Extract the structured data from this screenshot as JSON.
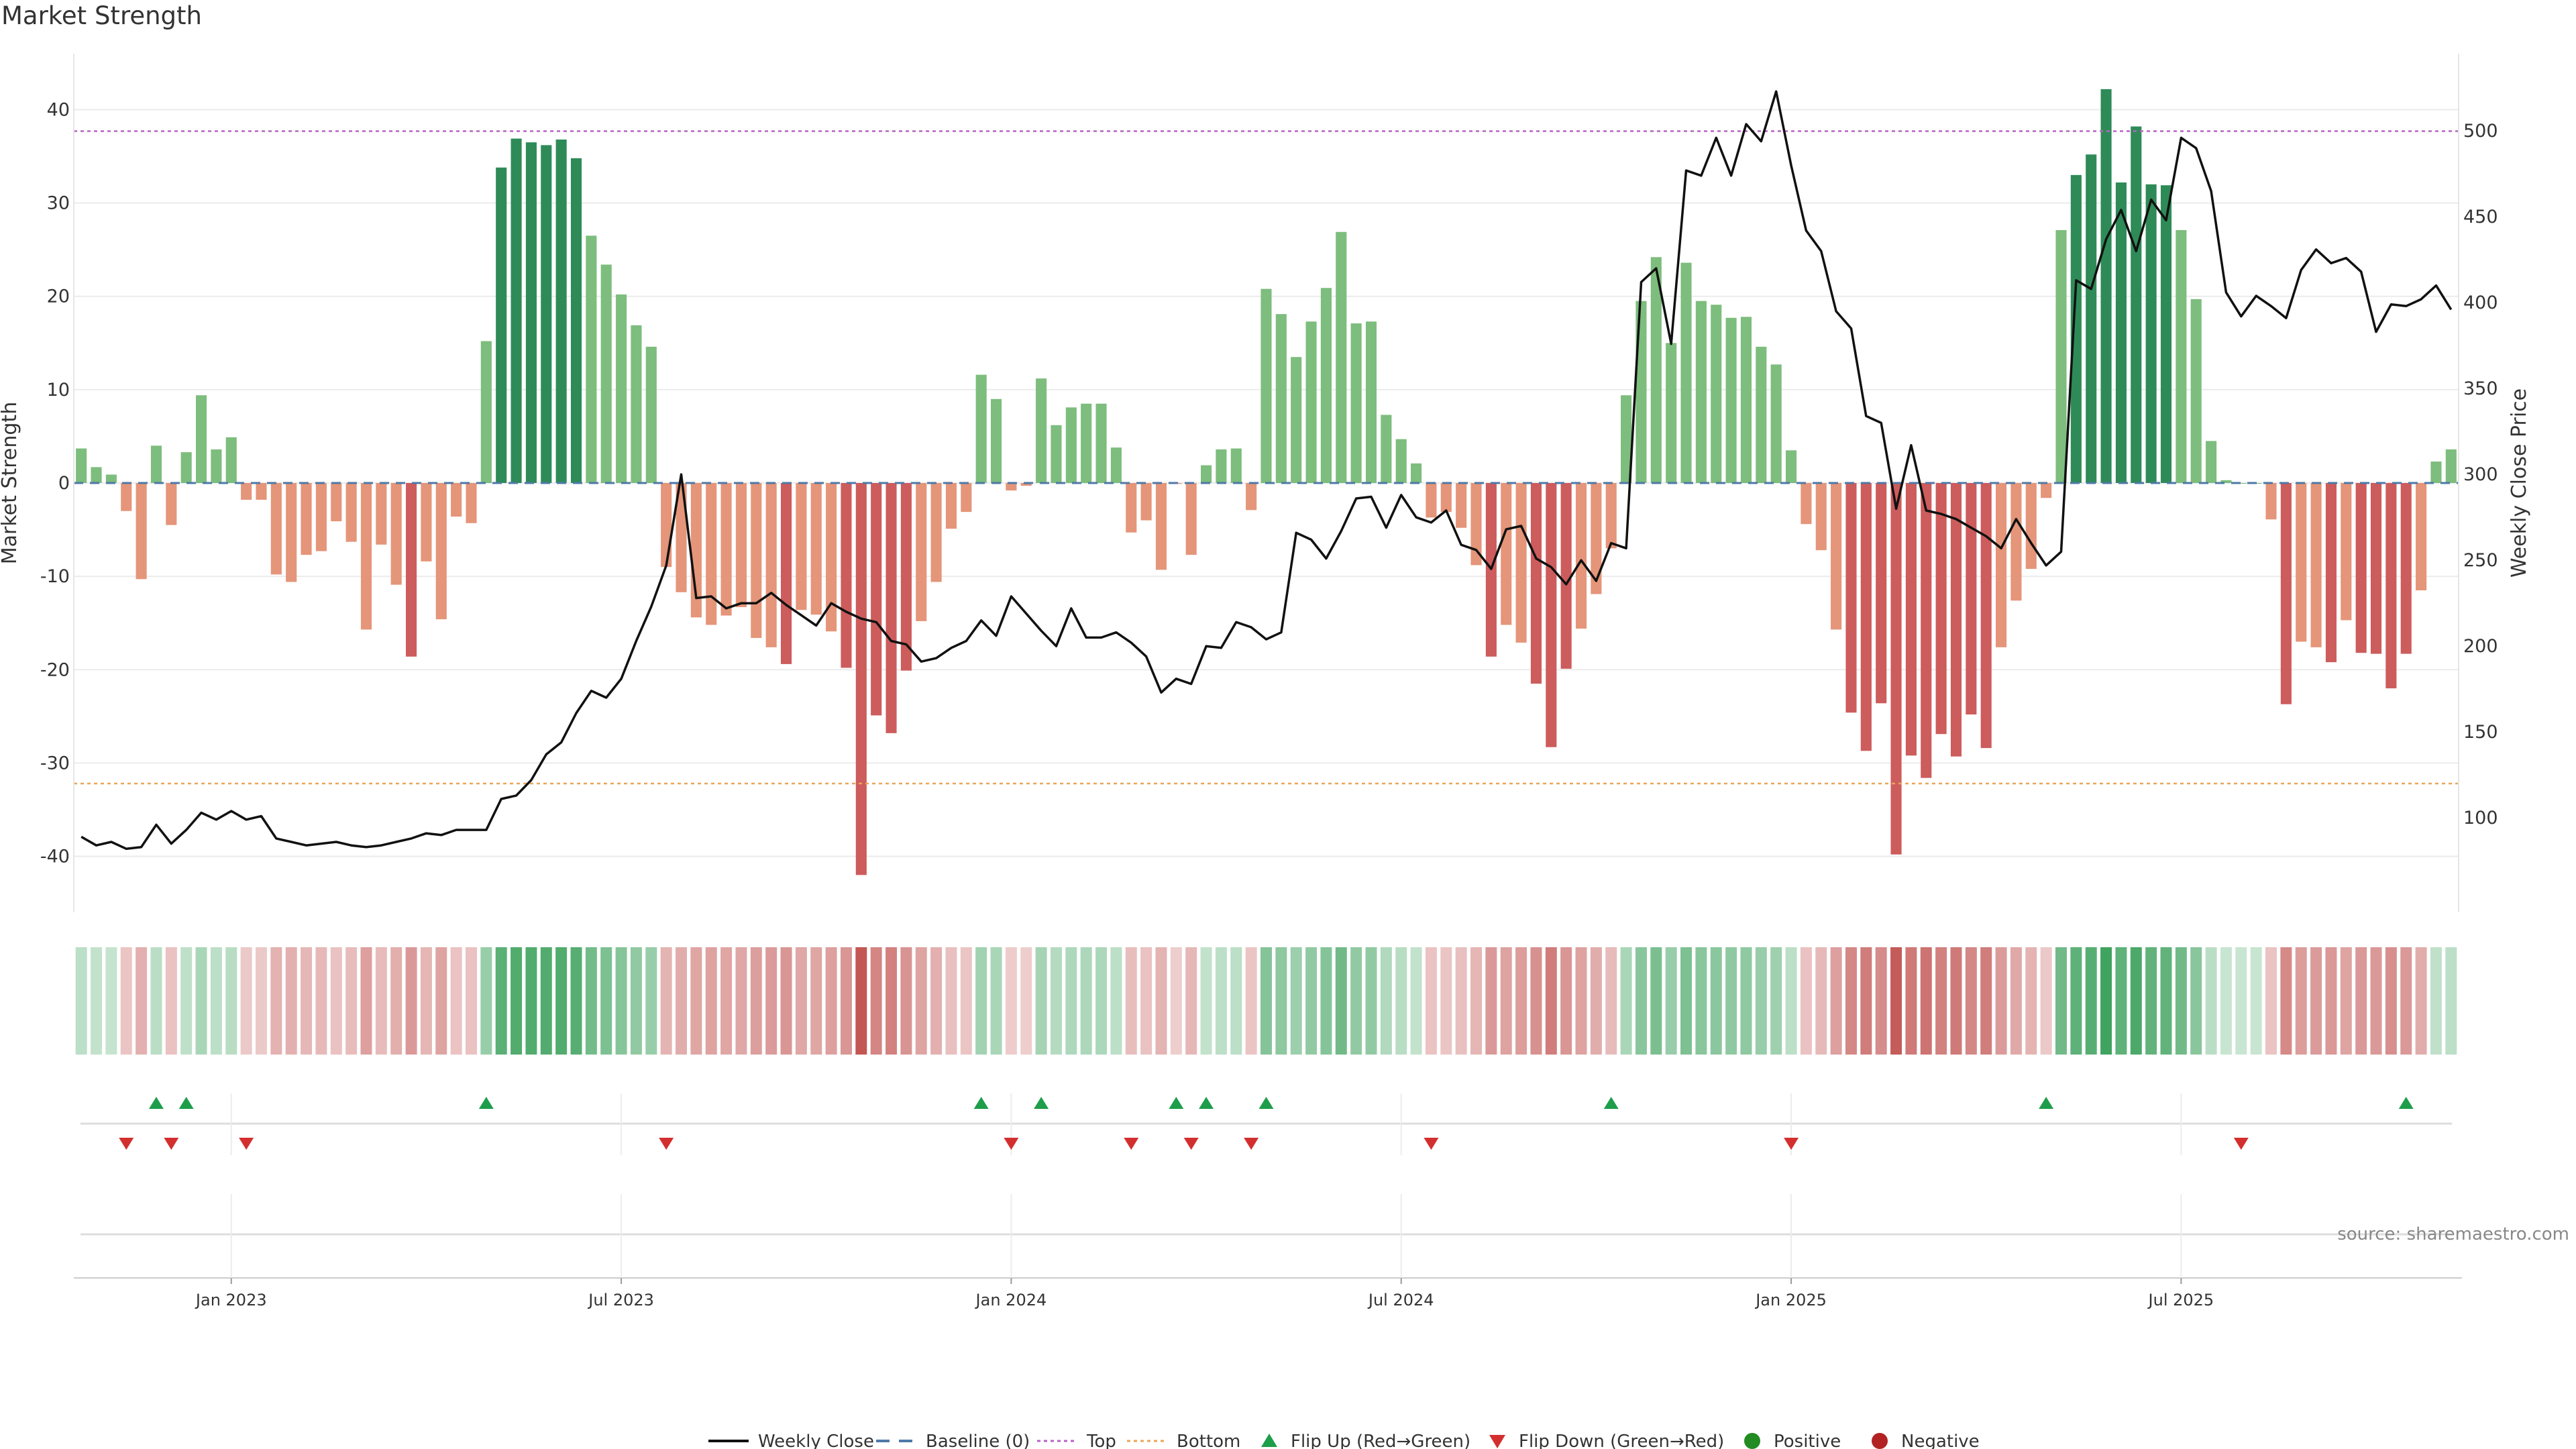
{
  "title": "Market Strength",
  "chart_data": {
    "type": "bar",
    "title": "Market Strength",
    "left_axis": {
      "label": "Market Strength",
      "range": [
        -46,
        46
      ],
      "ticks": [
        40,
        30,
        20,
        10,
        0,
        -10,
        -20,
        -30,
        -40
      ]
    },
    "right_axis": {
      "label": "Weekly Close Price",
      "range": [
        45,
        545
      ],
      "ticks": [
        500,
        450,
        400,
        350,
        300,
        250,
        200,
        150,
        100
      ]
    },
    "top_level": 37.7,
    "bottom_level": -32.2,
    "date_ticks": [
      {
        "label": "Jan 2023",
        "week": 10
      },
      {
        "label": "Jul 2023",
        "week": 36
      },
      {
        "label": "Jan 2024",
        "week": 62
      },
      {
        "label": "Jul 2024",
        "week": 88
      },
      {
        "label": "Jan 2025",
        "week": 114
      },
      {
        "label": "Jul 2025",
        "week": 140
      }
    ],
    "strength": [
      3.7,
      1.7,
      0.9,
      -3,
      -10.3,
      4,
      -4.5,
      3.3,
      9.4,
      3.6,
      4.9,
      -1.8,
      -1.8,
      -9.8,
      -10.6,
      -7.7,
      -7.3,
      -4.1,
      -6.3,
      -15.7,
      -6.6,
      -10.9,
      -18.6,
      -8.4,
      -14.6,
      -3.6,
      -4.3,
      15.2,
      33.8,
      36.9,
      36.5,
      36.2,
      36.8,
      34.8,
      26.5,
      23.4,
      20.2,
      16.9,
      14.6,
      -9,
      -11.7,
      -14.4,
      -15.2,
      -14.2,
      -13.3,
      -16.6,
      -17.6,
      -19.4,
      -13.6,
      -14.1,
      -15.9,
      -19.8,
      -42,
      -24.9,
      -26.8,
      -20.1,
      -14.8,
      -10.6,
      -4.9,
      -3.1,
      11.6,
      9,
      -0.8,
      -0.3,
      11.2,
      6.2,
      8.1,
      8.5,
      8.5,
      3.8,
      -5.3,
      -4,
      -9.3,
      -0.1,
      -7.7,
      1.9,
      3.6,
      3.7,
      -2.9,
      20.8,
      18.1,
      13.5,
      17.3,
      20.9,
      26.9,
      17.1,
      17.3,
      7.3,
      4.7,
      2.1,
      -3.7,
      -3.1,
      -4.8,
      -8.8,
      -18.6,
      -15.2,
      -17.1,
      -21.5,
      -28.3,
      -19.9,
      -15.6,
      -11.9,
      -7,
      9.4,
      19.5,
      24.2,
      15,
      23.6,
      19.5,
      19.1,
      17.7,
      17.8,
      14.6,
      12.7,
      3.5,
      -4.4,
      -7.2,
      -15.7,
      -24.6,
      -28.7,
      -23.6,
      -39.8,
      -29.2,
      -31.6,
      -26.9,
      -29.3,
      -24.8,
      -28.4,
      -17.6,
      -12.6,
      -9.2,
      -1.6,
      27.1,
      33,
      35.2,
      42.2,
      32.2,
      38.2,
      32,
      31.9,
      27.1,
      19.7,
      4.5,
      0.3,
      0,
      0,
      -3.9,
      -23.7,
      -17,
      -17.6,
      -19.2,
      -14.7,
      -18.2,
      -18.3,
      -22,
      -18.3,
      -11.5,
      2.3,
      3.6
    ],
    "weekly_close": [
      89,
      84,
      86,
      82,
      83,
      96,
      85,
      93,
      103,
      99,
      104,
      99,
      101,
      88,
      86,
      84,
      85,
      86,
      84,
      83,
      84,
      86,
      88,
      91,
      90,
      93,
      93,
      93,
      111,
      113,
      122,
      137,
      144,
      161,
      174,
      170,
      181,
      203,
      223,
      247,
      300,
      228,
      229,
      222,
      225,
      225,
      231,
      224,
      218,
      212,
      225,
      220,
      216,
      214,
      203,
      201,
      191,
      193,
      199,
      203,
      215,
      206,
      229,
      219,
      209,
      200,
      222,
      205,
      205,
      208,
      202,
      194,
      173,
      181,
      178,
      200,
      199,
      214,
      211,
      204,
      208,
      266,
      262,
      251,
      267,
      286,
      287,
      269,
      288,
      275,
      272,
      279,
      259,
      256,
      245,
      268,
      270,
      251,
      246,
      236,
      250,
      238,
      260,
      257,
      412,
      420,
      376,
      477,
      474,
      496,
      474,
      504,
      494,
      523,
      480,
      442,
      430,
      395,
      385,
      334,
      330,
      280,
      317,
      279,
      277,
      274,
      269,
      264,
      257,
      274,
      260,
      247,
      255,
      413,
      408,
      437,
      454,
      430,
      460,
      448,
      496,
      490,
      465,
      406,
      392,
      404,
      398,
      391,
      419,
      431,
      423,
      426,
      418,
      383,
      399,
      398,
      402,
      410,
      396
    ],
    "color_scale": [
      {
        "value": 30,
        "color": "#2e8b57"
      },
      {
        "value": 0,
        "color": "#7dbd7d"
      },
      {
        "value": -18,
        "color": "#e59579"
      },
      {
        "value": -999,
        "color": "#cd5c5c"
      }
    ],
    "flip_up_weeks": [
      5,
      7,
      27,
      60,
      64,
      73,
      75,
      79,
      102,
      131,
      155
    ],
    "flip_down_weeks": [
      3,
      6,
      11,
      39,
      62,
      70,
      74,
      78,
      90,
      114,
      144
    ],
    "legend": [
      "Weekly Close",
      "Baseline (0)",
      "Top",
      "Bottom",
      "Flip Up (Red→Green)",
      "Flip Down (Green→Red)",
      "Positive",
      "Negative"
    ],
    "source": "source: sharemaestro.com"
  }
}
